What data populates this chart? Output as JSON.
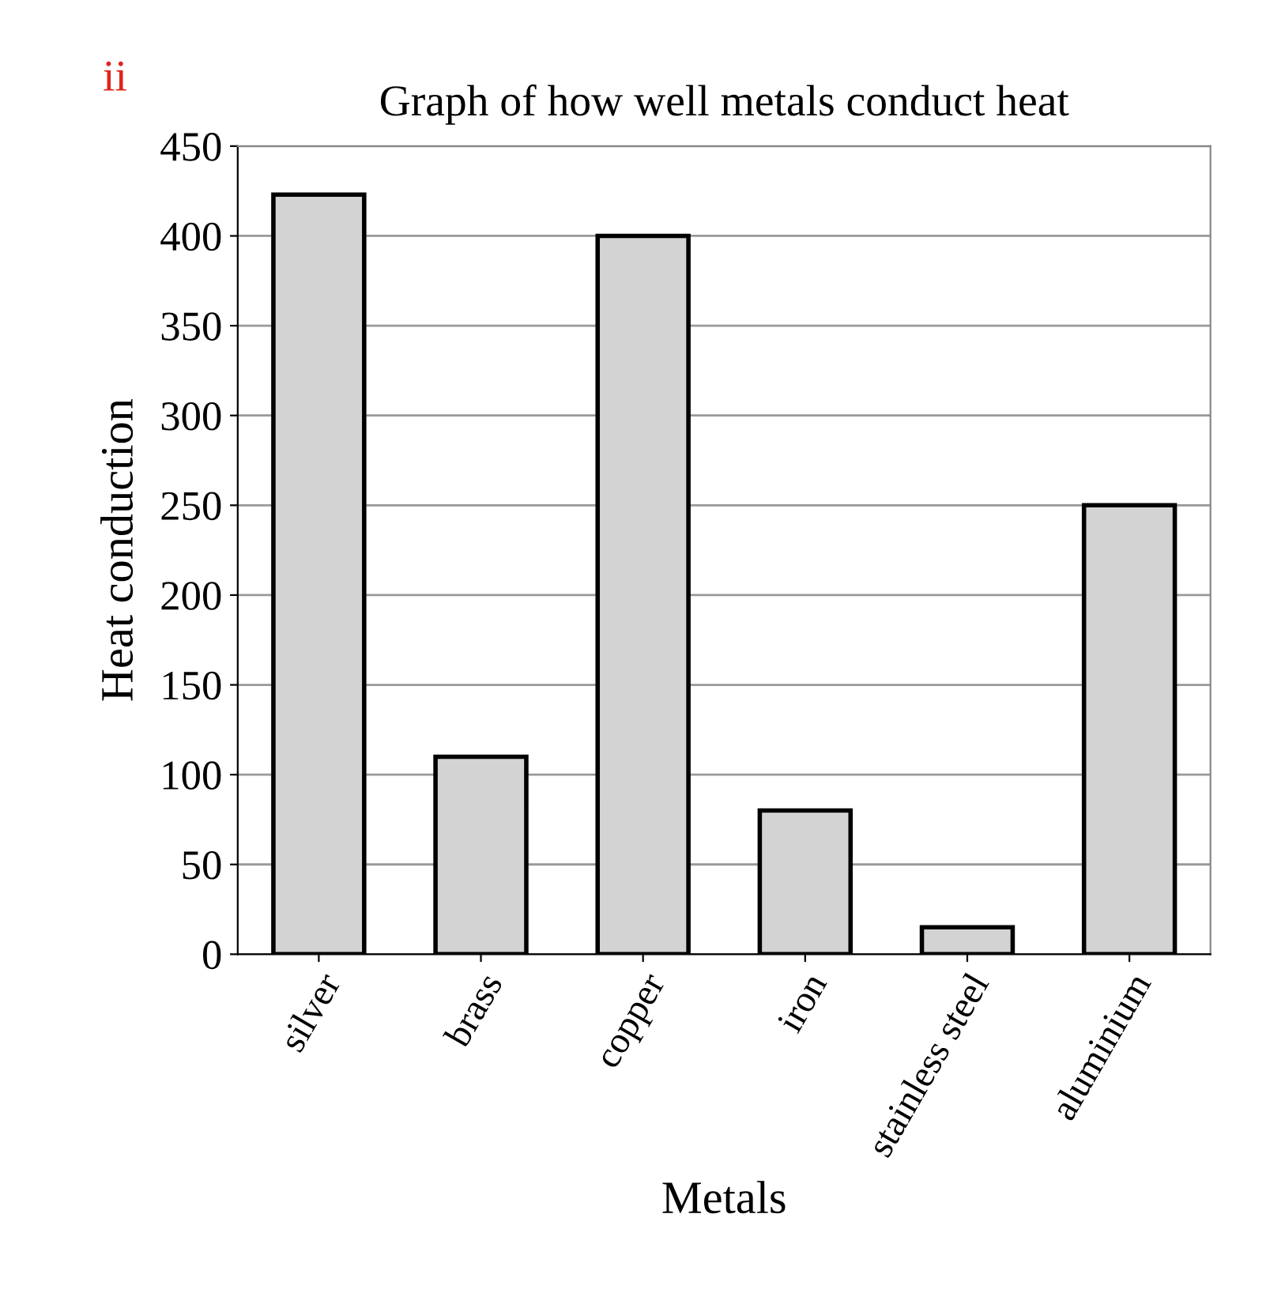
{
  "chart_data": {
    "type": "bar",
    "title": "Graph of how well metals conduct heat",
    "xlabel": "Metals",
    "ylabel": "Heat conduction",
    "categories": [
      "silver",
      "brass",
      "copper",
      "iron",
      "stainless steel",
      "aluminium"
    ],
    "values": [
      423,
      110,
      400,
      80,
      15,
      250
    ],
    "color": "#d3d3d3",
    "ylim": [
      0,
      450
    ],
    "yticks": [
      0,
      50,
      100,
      150,
      200,
      250,
      300,
      350,
      400,
      450
    ],
    "grid": "y",
    "annotations": [
      "ii"
    ]
  }
}
